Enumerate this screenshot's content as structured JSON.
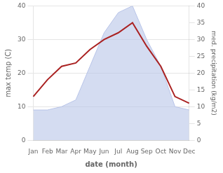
{
  "chart_data": {
    "type": "line",
    "categories": [
      "Jan",
      "Feb",
      "Mar",
      "Apr",
      "May",
      "Jun",
      "Jul",
      "Aug",
      "Sep",
      "Oct",
      "Nov",
      "Dec"
    ],
    "series": [
      {
        "type": "area",
        "color": "#b8c4e8",
        "axis": "y2",
        "values": [
          9,
          9,
          10,
          12,
          22,
          32,
          38,
          40,
          30,
          22,
          10,
          9
        ]
      },
      {
        "type": "line",
        "color": "#aa2222",
        "values": [
          13,
          18,
          22,
          23,
          27,
          30,
          32,
          35,
          28,
          22,
          13,
          11
        ]
      }
    ],
    "x_label": "date (month)",
    "y_label": "max temp (C)",
    "y2_label": "med. precipitation (kg/m2)",
    "ylim": [
      0,
      40
    ],
    "yticks": [
      0,
      10,
      20,
      30,
      40
    ],
    "y2lim": [
      0,
      40
    ],
    "y2ticks": [
      0,
      5,
      10,
      15,
      20,
      25,
      30,
      35,
      40
    ],
    "grid": true
  }
}
